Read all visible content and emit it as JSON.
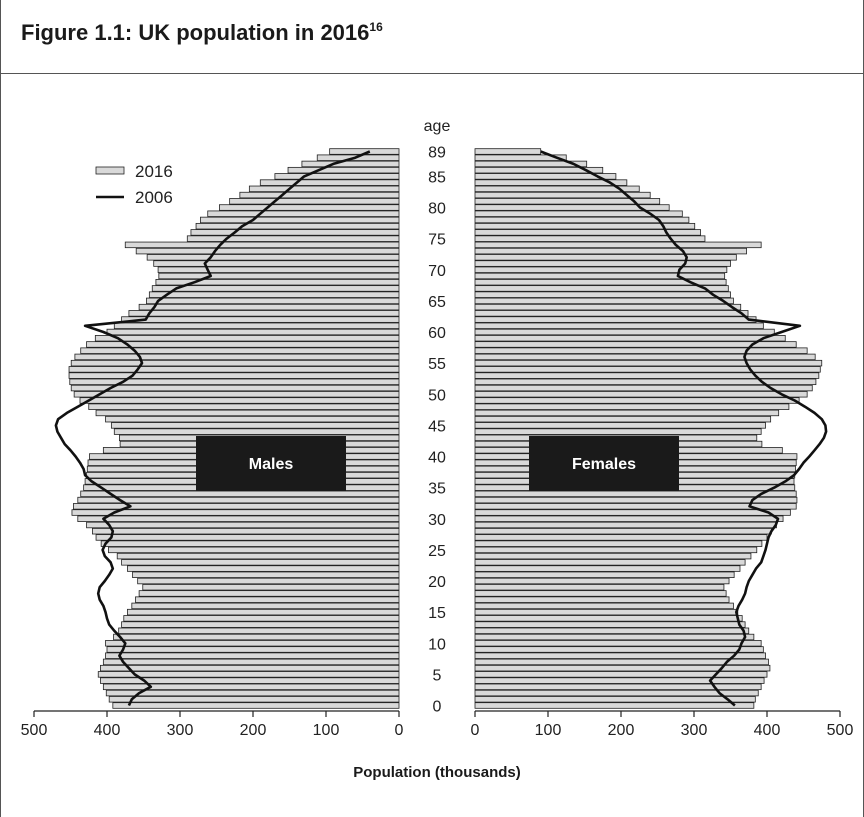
{
  "figure": {
    "title": "Figure 1.1: UK population in 2016",
    "title_superscript": "16"
  },
  "chart_data": {
    "type": "bar",
    "orientation": "horizontal-population-pyramid",
    "age_axis_label": "age",
    "xlabel": "Population (thousands)",
    "ylabel": "",
    "age_ticks": [
      "0",
      "5",
      "10",
      "15",
      "20",
      "25",
      "30",
      "35",
      "40",
      "45",
      "50",
      "55",
      "60",
      "65",
      "70",
      "75",
      "80",
      "85",
      "89"
    ],
    "x_ticks": [
      "500",
      "400",
      "300",
      "200",
      "100",
      "0"
    ],
    "x_ticks_right": [
      "0",
      "100",
      "200",
      "300",
      "400",
      "500"
    ],
    "xlim": [
      0,
      500
    ],
    "legend": {
      "position": "top-left",
      "entries": [
        "2016",
        "2006"
      ]
    },
    "legend_styles": [
      {
        "label": "2016",
        "style": "bar"
      },
      {
        "label": "2006",
        "style": "line"
      }
    ],
    "panel_labels": {
      "left": "Males",
      "right": "Females"
    },
    "colors": {
      "bar_fill": "#d9d9d9",
      "bar_stroke": "#222222",
      "line": "#111111",
      "label_box": "#1a1a1a",
      "label_text": "#ffffff"
    },
    "ages": [
      0,
      1,
      2,
      3,
      4,
      5,
      6,
      7,
      8,
      9,
      10,
      11,
      12,
      13,
      14,
      15,
      16,
      17,
      18,
      19,
      20,
      21,
      22,
      23,
      24,
      25,
      26,
      27,
      28,
      29,
      30,
      31,
      32,
      33,
      34,
      35,
      36,
      37,
      38,
      39,
      40,
      41,
      42,
      43,
      44,
      45,
      46,
      47,
      48,
      49,
      50,
      51,
      52,
      53,
      54,
      55,
      56,
      57,
      58,
      59,
      60,
      61,
      62,
      63,
      64,
      65,
      66,
      67,
      68,
      69,
      70,
      71,
      72,
      73,
      74,
      75,
      76,
      77,
      78,
      79,
      80,
      81,
      82,
      83,
      84,
      85,
      86,
      87,
      88,
      89
    ],
    "series": [
      {
        "name": "2016",
        "panel": "Males",
        "values": [
          392,
          397,
          401,
          405,
          409,
          412,
          409,
          405,
          402,
          400,
          402,
          391,
          384,
          380,
          377,
          372,
          366,
          361,
          356,
          351,
          358,
          365,
          372,
          380,
          386,
          398,
          408,
          415,
          420,
          428,
          440,
          448,
          446,
          440,
          436,
          432,
          430,
          428,
          427,
          426,
          424,
          405,
          382,
          383,
          390,
          394,
          402,
          415,
          425,
          437,
          445,
          449,
          451,
          452,
          452,
          449,
          444,
          436,
          428,
          416,
          400,
          390,
          380,
          370,
          356,
          346,
          342,
          338,
          333,
          329,
          330,
          336,
          345,
          360,
          375,
          290,
          285,
          278,
          272,
          262,
          246,
          232,
          218,
          205,
          190,
          170,
          152,
          133,
          112,
          95
        ],
        "values_note": "2016 males: read approximately from the bar lengths against the 500-0 axis"
      },
      {
        "name": "2016",
        "panel": "Females",
        "values": [
          382,
          384,
          388,
          392,
          396,
          400,
          404,
          402,
          398,
          395,
          392,
          382,
          375,
          370,
          366,
          360,
          354,
          348,
          344,
          341,
          348,
          355,
          363,
          370,
          378,
          386,
          393,
          400,
          406,
          413,
          422,
          432,
          440,
          441,
          440,
          438,
          437,
          438,
          439,
          440,
          441,
          421,
          393,
          386,
          392,
          398,
          405,
          416,
          430,
          444,
          455,
          462,
          467,
          471,
          473,
          475,
          466,
          455,
          440,
          425,
          410,
          395,
          385,
          374,
          364,
          354,
          350,
          347,
          344,
          342,
          345,
          350,
          358,
          372,
          392,
          315,
          309,
          301,
          293,
          284,
          266,
          253,
          240,
          225,
          208,
          193,
          175,
          153,
          125,
          90
        ],
        "values_note": "2016 females: read approximately from the bar lengths against the 0-500 axis"
      },
      {
        "name": "2006",
        "panel": "Males",
        "values": [
          370,
          366,
          356,
          340,
          349,
          362,
          370,
          378,
          383,
          378,
          375,
          382,
          390,
          397,
          400,
          402,
          405,
          410,
          412,
          410,
          403,
          397,
          392,
          395,
          403,
          406,
          402,
          394,
          392,
          397,
          405,
          390,
          368,
          382,
          395,
          408,
          421,
          430,
          432,
          437,
          443,
          450,
          458,
          463,
          468,
          470,
          467,
          455,
          440,
          425,
          410,
          395,
          378,
          365,
          358,
          352,
          355,
          362,
          372,
          385,
          405,
          430,
          347,
          342,
          335,
          330,
          318,
          305,
          280,
          258,
          262,
          266,
          258,
          252,
          245,
          236,
          225,
          215,
          200,
          190,
          180,
          170,
          160,
          150,
          140,
          130,
          110,
          90,
          60,
          40
        ],
        "values_note": "2006 males: traced from the line"
      },
      {
        "name": "2006",
        "panel": "Females",
        "values": [
          356,
          346,
          335,
          328,
          322,
          330,
          338,
          345,
          355,
          362,
          365,
          370,
          368,
          362,
          360,
          358,
          361,
          366,
          370,
          372,
          375,
          380,
          385,
          392,
          395,
          398,
          400,
          402,
          406,
          412,
          415,
          402,
          376,
          380,
          392,
          410,
          425,
          437,
          444,
          450,
          458,
          465,
          472,
          478,
          481,
          480,
          475,
          465,
          452,
          438,
          420,
          405,
          393,
          384,
          377,
          372,
          369,
          372,
          380,
          395,
          420,
          445,
          375,
          365,
          352,
          340,
          326,
          315,
          295,
          278,
          280,
          288,
          290,
          285,
          275,
          268,
          262,
          258,
          252,
          240,
          226,
          218,
          208,
          198,
          185,
          168,
          152,
          135,
          112,
          90
        ],
        "values_note": "2006 females: traced from the line"
      }
    ]
  }
}
